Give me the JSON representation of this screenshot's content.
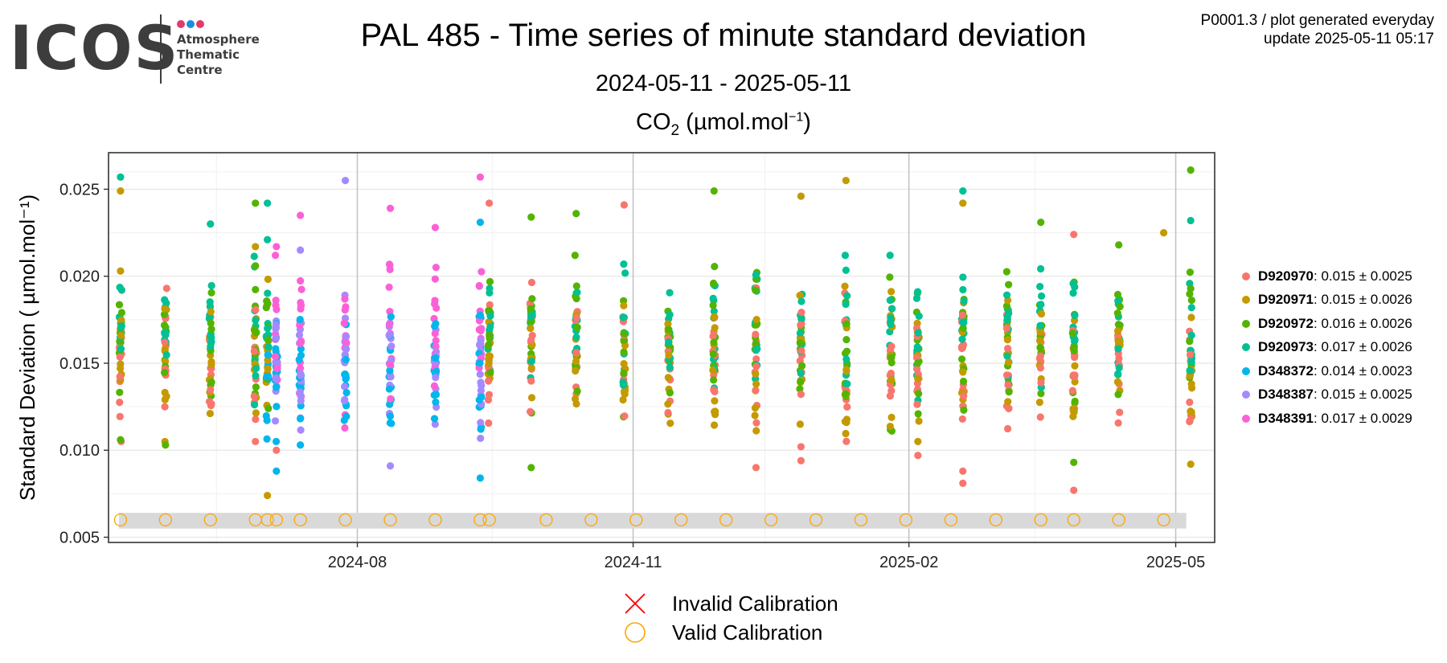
{
  "header": {
    "logo_text": "ICOS",
    "logo_subtitle": [
      "Atmosphere",
      "Thematic",
      "Centre"
    ],
    "logo_dot_colors": [
      "#e23b6b",
      "#1a8fe0",
      "#e23b6b"
    ],
    "title": "PAL 485 - Time series of minute standard deviation",
    "subtitle": "2024-05-11 - 2025-05-11",
    "species": {
      "main": "CO",
      "sub": "2",
      "unit_pre": " (µmol.mol",
      "unit_sup": "−1",
      "unit_post": ")"
    },
    "meta_line1": "P0001.3 / plot generated everyday",
    "meta_line2": "update  2025-05-11 05:17"
  },
  "chart_data": {
    "type": "scatter",
    "title": "PAL 485 - Time series of minute standard deviation",
    "xlabel": "",
    "ylabel": "Standard Deviation ( µmol.mol⁻¹)",
    "xlim": [
      "2024-05-10",
      "2025-05-14"
    ],
    "ylim": [
      0.0047,
      0.0271
    ],
    "x_ticks": [
      "2024-08-01",
      "2024-11-01",
      "2025-02-01",
      "2025-05-01"
    ],
    "x_tick_labels": [
      "2024-08",
      "2024-11",
      "2025-02",
      "2025-05"
    ],
    "y_ticks": [
      0.005,
      0.01,
      0.015,
      0.02,
      0.025
    ],
    "y_tick_labels": [
      "0.005",
      "0.010",
      "0.015",
      "0.020",
      "0.025"
    ],
    "grid": true,
    "legend_position": "right",
    "calibration_band": [
      0.0055,
      0.0064
    ],
    "calibration_value": 0.006,
    "calibration_dates": [
      "2024-05-14",
      "2024-05-29",
      "2024-06-13",
      "2024-06-28",
      "2024-07-02",
      "2024-07-05",
      "2024-07-13",
      "2024-07-28",
      "2024-08-12",
      "2024-08-27",
      "2024-09-11",
      "2024-09-14",
      "2024-10-03",
      "2024-10-18",
      "2024-11-02",
      "2024-11-17",
      "2024-12-02",
      "2024-12-17",
      "2025-01-01",
      "2025-01-16",
      "2025-01-31",
      "2025-02-15",
      "2025-03-02",
      "2025-03-17",
      "2025-03-28",
      "2025-04-12",
      "2025-04-27"
    ],
    "series": [
      {
        "name": "D920970",
        "stat": "0.015 ± 0.0025",
        "color": "#F8766D",
        "mean": 0.015,
        "sd": 0.0025,
        "highlights": [
          [
            "2024-06-28",
            0.0105
          ],
          [
            "2024-07-05",
            0.01
          ],
          [
            "2024-09-14",
            0.0242
          ],
          [
            "2024-10-29",
            0.0241
          ],
          [
            "2024-12-12",
            0.009
          ],
          [
            "2024-12-27",
            0.0094
          ],
          [
            "2024-12-27",
            0.0102
          ],
          [
            "2025-02-19",
            0.0081
          ],
          [
            "2025-02-19",
            0.0088
          ],
          [
            "2025-02-04",
            0.0097
          ],
          [
            "2025-03-28",
            0.0077
          ],
          [
            "2025-03-28",
            0.0224
          ]
        ]
      },
      {
        "name": "D920971",
        "stat": "0.015 ± 0.0026",
        "color": "#C49A00",
        "mean": 0.015,
        "sd": 0.0026,
        "highlights": [
          [
            "2024-05-14",
            0.0249
          ],
          [
            "2024-05-14",
            0.0203
          ],
          [
            "2024-06-28",
            0.0217
          ],
          [
            "2024-07-02",
            0.0074
          ],
          [
            "2024-12-27",
            0.0246
          ],
          [
            "2025-01-11",
            0.0255
          ],
          [
            "2025-02-19",
            0.0242
          ],
          [
            "2025-04-27",
            0.0225
          ],
          [
            "2025-05-06",
            0.0092
          ]
        ]
      },
      {
        "name": "D920972",
        "stat": "0.016 ± 0.0026",
        "color": "#53B400",
        "mean": 0.016,
        "sd": 0.0026,
        "highlights": [
          [
            "2024-05-14",
            0.0106
          ],
          [
            "2024-05-29",
            0.0103
          ],
          [
            "2024-06-28",
            0.0242
          ],
          [
            "2024-09-28",
            0.0234
          ],
          [
            "2024-09-28",
            0.009
          ],
          [
            "2024-10-13",
            0.0236
          ],
          [
            "2024-11-28",
            0.0249
          ],
          [
            "2025-03-28",
            0.0093
          ],
          [
            "2025-04-12",
            0.0218
          ],
          [
            "2025-05-06",
            0.0261
          ],
          [
            "2025-03-17",
            0.0231
          ]
        ]
      },
      {
        "name": "D920973",
        "stat": "0.017 ± 0.0026",
        "color": "#00C094",
        "mean": 0.017,
        "sd": 0.0026,
        "highlights": [
          [
            "2024-05-14",
            0.0257
          ],
          [
            "2024-06-13",
            0.023
          ],
          [
            "2024-07-02",
            0.0242
          ],
          [
            "2024-07-02",
            0.0221
          ],
          [
            "2025-02-19",
            0.0249
          ],
          [
            "2025-05-06",
            0.0232
          ]
        ]
      },
      {
        "name": "D348372",
        "stat": "0.014 ± 0.0023",
        "color": "#00B6EB",
        "mean": 0.014,
        "sd": 0.0023,
        "highlights": [
          [
            "2024-07-05",
            0.0088
          ],
          [
            "2024-09-11",
            0.0084
          ],
          [
            "2024-09-11",
            0.0231
          ],
          [
            "2024-07-13",
            0.0103
          ]
        ]
      },
      {
        "name": "D348387",
        "stat": "0.015 ± 0.0025",
        "color": "#A58AFF",
        "mean": 0.015,
        "sd": 0.0025,
        "highlights": [
          [
            "2024-07-28",
            0.0255
          ],
          [
            "2024-08-12",
            0.0091
          ],
          [
            "2024-07-13",
            0.0215
          ]
        ]
      },
      {
        "name": "D348391",
        "stat": "0.017 ± 0.0029",
        "color": "#FB61D7",
        "mean": 0.017,
        "sd": 0.0029,
        "highlights": [
          [
            "2024-09-11",
            0.0257
          ],
          [
            "2024-08-12",
            0.0239
          ],
          [
            "2024-07-13",
            0.0235
          ],
          [
            "2024-08-27",
            0.0228
          ],
          [
            "2024-07-05",
            0.0217
          ]
        ]
      }
    ],
    "measurement_periods": [
      {
        "date": "2024-05-14",
        "series": [
          "D920970",
          "D920971",
          "D920972",
          "D920973"
        ]
      },
      {
        "date": "2024-05-29",
        "series": [
          "D920970",
          "D920971",
          "D920972",
          "D920973"
        ]
      },
      {
        "date": "2024-06-13",
        "series": [
          "D920970",
          "D920971",
          "D920972",
          "D920973"
        ]
      },
      {
        "date": "2024-06-28",
        "series": [
          "D920970",
          "D920971",
          "D920972",
          "D920973"
        ]
      },
      {
        "date": "2024-07-02",
        "series": [
          "D920971",
          "D920972",
          "D920973",
          "D348372"
        ]
      },
      {
        "date": "2024-07-05",
        "series": [
          "D348372",
          "D348387",
          "D348391"
        ]
      },
      {
        "date": "2024-07-13",
        "series": [
          "D348372",
          "D348387",
          "D348391"
        ]
      },
      {
        "date": "2024-07-28",
        "series": [
          "D348372",
          "D348387",
          "D348391"
        ]
      },
      {
        "date": "2024-08-12",
        "series": [
          "D348372",
          "D348387",
          "D348391"
        ]
      },
      {
        "date": "2024-08-27",
        "series": [
          "D348372",
          "D348387",
          "D348391"
        ]
      },
      {
        "date": "2024-09-11",
        "series": [
          "D348372",
          "D348387",
          "D348391"
        ]
      },
      {
        "date": "2024-09-14",
        "series": [
          "D920970",
          "D920971",
          "D920972",
          "D920973"
        ]
      },
      {
        "date": "2024-09-28",
        "series": [
          "D920970",
          "D920971",
          "D920972",
          "D920973"
        ]
      },
      {
        "date": "2024-10-13",
        "series": [
          "D920970",
          "D920971",
          "D920972",
          "D920973"
        ]
      },
      {
        "date": "2024-10-29",
        "series": [
          "D920970",
          "D920971",
          "D920972",
          "D920973"
        ]
      },
      {
        "date": "2024-11-13",
        "series": [
          "D920970",
          "D920971",
          "D920972",
          "D920973"
        ]
      },
      {
        "date": "2024-11-28",
        "series": [
          "D920970",
          "D920971",
          "D920972",
          "D920973"
        ]
      },
      {
        "date": "2024-12-12",
        "series": [
          "D920970",
          "D920971",
          "D920972",
          "D920973"
        ]
      },
      {
        "date": "2024-12-27",
        "series": [
          "D920970",
          "D920971",
          "D920972",
          "D920973"
        ]
      },
      {
        "date": "2025-01-11",
        "series": [
          "D920970",
          "D920971",
          "D920972",
          "D920973"
        ]
      },
      {
        "date": "2025-01-26",
        "series": [
          "D920970",
          "D920971",
          "D920972",
          "D920973"
        ]
      },
      {
        "date": "2025-02-04",
        "series": [
          "D920970",
          "D920971",
          "D920972",
          "D920973"
        ]
      },
      {
        "date": "2025-02-19",
        "series": [
          "D920970",
          "D920971",
          "D920972",
          "D920973"
        ]
      },
      {
        "date": "2025-03-06",
        "series": [
          "D920970",
          "D920971",
          "D920972",
          "D920973"
        ]
      },
      {
        "date": "2025-03-17",
        "series": [
          "D920970",
          "D920971",
          "D920972",
          "D920973"
        ]
      },
      {
        "date": "2025-03-28",
        "series": [
          "D920970",
          "D920971",
          "D920972",
          "D920973"
        ]
      },
      {
        "date": "2025-04-12",
        "series": [
          "D920970",
          "D920971",
          "D920972",
          "D920973"
        ]
      },
      {
        "date": "2025-05-06",
        "series": [
          "D920970",
          "D920971",
          "D920972",
          "D920973"
        ]
      }
    ],
    "points_per_period": 40
  },
  "calibration_legend": {
    "invalid_label": "Invalid Calibration",
    "valid_label": "Valid Calibration",
    "invalid_color": "#FF0000",
    "valid_color": "#FFA500"
  }
}
